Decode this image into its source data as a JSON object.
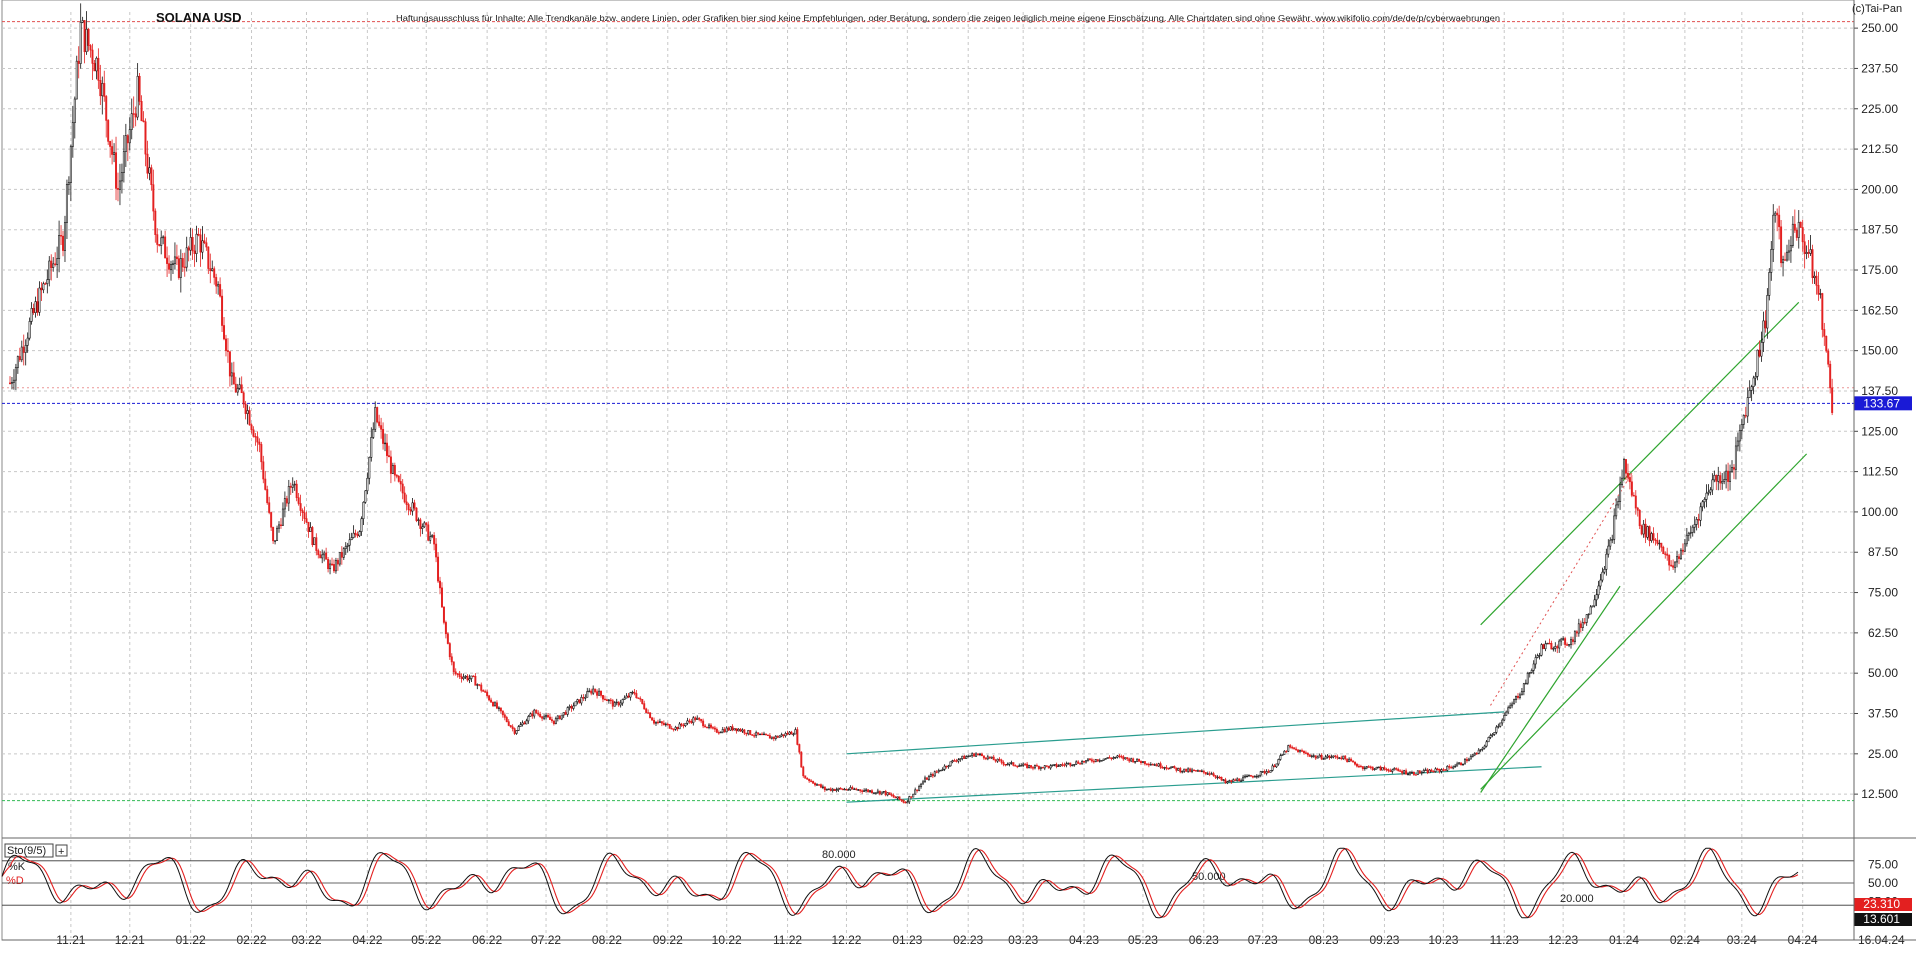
{
  "header": {
    "title": "SOLANA USD",
    "disclaimer": "Haftungsausschluss für Inhalte: Alle Trendkanäle bzw. andere Linien, oder Grafiken hier sind keine Empfehlungen, oder Beratung, sondern die zeigen lediglich meine eigene Einschätzung. Alle Chartdaten sind ohne Gewähr. www.wikifolio.com/de/de/p/cyberwaehrungen",
    "copyright": "(c)Tai-Pan"
  },
  "colors": {
    "up": "#111111",
    "down": "#e32020",
    "price_line": "#1a1ad6",
    "res_line": "#e05050",
    "sup_line": "#33bb55",
    "channel_teal": "#2a9d8f",
    "channel_green": "#2fa52f"
  },
  "chart_data": [
    {
      "type": "candlestick",
      "title": "SOLANA USD",
      "ylim": [
        2,
        255
      ],
      "y_ticks": [
        "12.500",
        "25.00",
        "37.50",
        "50.00",
        "62.50",
        "75.00",
        "87.50",
        "100.00",
        "112.50",
        "125.00",
        "137.50",
        "150.00",
        "162.50",
        "175.00",
        "187.50",
        "200.00",
        "212.50",
        "225.00",
        "237.50",
        "250.00"
      ],
      "x_ticks": [
        {
          "x": "2021-11-01",
          "label": "11.21"
        },
        {
          "x": "2021-12-01",
          "label": "12.21"
        },
        {
          "x": "2022-01-01",
          "label": "01.22"
        },
        {
          "x": "2022-02-01",
          "label": "02.22"
        },
        {
          "x": "2022-03-01",
          "label": "03.22"
        },
        {
          "x": "2022-04-01",
          "label": "04.22"
        },
        {
          "x": "2022-05-01",
          "label": "05.22"
        },
        {
          "x": "2022-06-01",
          "label": "06.22"
        },
        {
          "x": "2022-07-01",
          "label": "07.22"
        },
        {
          "x": "2022-08-01",
          "label": "08.22"
        },
        {
          "x": "2022-09-01",
          "label": "09.22"
        },
        {
          "x": "2022-10-01",
          "label": "10.22"
        },
        {
          "x": "2022-11-01",
          "label": "11.22"
        },
        {
          "x": "2022-12-01",
          "label": "12.22"
        },
        {
          "x": "2023-01-01",
          "label": "01.23"
        },
        {
          "x": "2023-02-01",
          "label": "02.23"
        },
        {
          "x": "2023-03-01",
          "label": "03.23"
        },
        {
          "x": "2023-04-01",
          "label": "04.23"
        },
        {
          "x": "2023-05-01",
          "label": "05.23"
        },
        {
          "x": "2023-06-01",
          "label": "06.23"
        },
        {
          "x": "2023-07-01",
          "label": "07.23"
        },
        {
          "x": "2023-08-01",
          "label": "08.23"
        },
        {
          "x": "2023-09-01",
          "label": "09.23"
        },
        {
          "x": "2023-10-01",
          "label": "10.23"
        },
        {
          "x": "2023-11-01",
          "label": "11.23"
        },
        {
          "x": "2023-12-01",
          "label": "12.23"
        },
        {
          "x": "2024-01-01",
          "label": "01.24"
        },
        {
          "x": "2024-02-01",
          "label": "02.24"
        },
        {
          "x": "2024-03-01",
          "label": "03.24"
        },
        {
          "x": "2024-04-01",
          "label": "04.24"
        }
      ],
      "last_date_label": "16.04.24",
      "last_price": 133.67,
      "last_price_label": "133.67",
      "levels": {
        "resistance": 252,
        "mid": 138.5,
        "support": 10.5
      },
      "price_path": [
        [
          "2021-10-01",
          140
        ],
        [
          "2021-10-15",
          165
        ],
        [
          "2021-10-28",
          185
        ],
        [
          "2021-11-06",
          250
        ],
        [
          "2021-11-15",
          238
        ],
        [
          "2021-11-25",
          200
        ],
        [
          "2021-12-05",
          230
        ],
        [
          "2021-12-15",
          185
        ],
        [
          "2021-12-25",
          175
        ],
        [
          "2022-01-05",
          185
        ],
        [
          "2022-01-15",
          170
        ],
        [
          "2022-01-22",
          140
        ],
        [
          "2022-01-28",
          135
        ],
        [
          "2022-02-05",
          120
        ],
        [
          "2022-02-12",
          90
        ],
        [
          "2022-02-22",
          110
        ],
        [
          "2022-03-05",
          90
        ],
        [
          "2022-03-14",
          82
        ],
        [
          "2022-03-28",
          95
        ],
        [
          "2022-04-05",
          130
        ],
        [
          "2022-04-15",
          110
        ],
        [
          "2022-04-25",
          100
        ],
        [
          "2022-05-05",
          90
        ],
        [
          "2022-05-10",
          65
        ],
        [
          "2022-05-15",
          50
        ],
        [
          "2022-05-25",
          48
        ],
        [
          "2022-06-05",
          40
        ],
        [
          "2022-06-15",
          32
        ],
        [
          "2022-06-25",
          38
        ],
        [
          "2022-07-05",
          35
        ],
        [
          "2022-07-15",
          40
        ],
        [
          "2022-07-25",
          45
        ],
        [
          "2022-08-05",
          40
        ],
        [
          "2022-08-15",
          44
        ],
        [
          "2022-08-25",
          35
        ],
        [
          "2022-09-05",
          33
        ],
        [
          "2022-09-15",
          36
        ],
        [
          "2022-09-25",
          32
        ],
        [
          "2022-10-05",
          33
        ],
        [
          "2022-10-15",
          31
        ],
        [
          "2022-10-25",
          30
        ],
        [
          "2022-11-05",
          32
        ],
        [
          "2022-11-09",
          18
        ],
        [
          "2022-11-20",
          14
        ],
        [
          "2022-12-05",
          14
        ],
        [
          "2022-12-20",
          13
        ],
        [
          "2022-12-31",
          10
        ],
        [
          "2023-01-10",
          17
        ],
        [
          "2023-01-25",
          23
        ],
        [
          "2023-02-05",
          25
        ],
        [
          "2023-02-20",
          22
        ],
        [
          "2023-03-05",
          21
        ],
        [
          "2023-03-15",
          21
        ],
        [
          "2023-03-25",
          22
        ],
        [
          "2023-04-05",
          23
        ],
        [
          "2023-04-18",
          24
        ],
        [
          "2023-05-05",
          22
        ],
        [
          "2023-05-20",
          20
        ],
        [
          "2023-06-05",
          19
        ],
        [
          "2023-06-12",
          16
        ],
        [
          "2023-06-25",
          18
        ],
        [
          "2023-07-05",
          20
        ],
        [
          "2023-07-14",
          27
        ],
        [
          "2023-07-28",
          24
        ],
        [
          "2023-08-10",
          24
        ],
        [
          "2023-08-20",
          21
        ],
        [
          "2023-09-05",
          20
        ],
        [
          "2023-09-15",
          19
        ],
        [
          "2023-09-30",
          20
        ],
        [
          "2023-10-10",
          22
        ],
        [
          "2023-10-20",
          26
        ],
        [
          "2023-10-30",
          35
        ],
        [
          "2023-11-10",
          45
        ],
        [
          "2023-11-20",
          58
        ],
        [
          "2023-12-05",
          60
        ],
        [
          "2023-12-15",
          70
        ],
        [
          "2023-12-25",
          90
        ],
        [
          "2024-01-01",
          115
        ],
        [
          "2024-01-10",
          95
        ],
        [
          "2024-01-20",
          90
        ],
        [
          "2024-01-25",
          82
        ],
        [
          "2024-02-05",
          95
        ],
        [
          "2024-02-15",
          110
        ],
        [
          "2024-02-25",
          112
        ],
        [
          "2024-03-02",
          130
        ],
        [
          "2024-03-08",
          145
        ],
        [
          "2024-03-13",
          160
        ],
        [
          "2024-03-18",
          195
        ],
        [
          "2024-03-22",
          175
        ],
        [
          "2024-03-28",
          190
        ],
        [
          "2024-04-04",
          180
        ],
        [
          "2024-04-10",
          165
        ],
        [
          "2024-04-16",
          133
        ]
      ],
      "trend_lines": [
        {
          "name": "teal-upper",
          "points": [
            [
              "2022-12-01",
              25
            ],
            [
              "2023-11-01",
              38
            ]
          ]
        },
        {
          "name": "teal-lower",
          "points": [
            [
              "2022-12-01",
              10
            ],
            [
              "2023-11-20",
              21
            ]
          ]
        },
        {
          "name": "green-upper",
          "points": [
            [
              "2023-10-20",
              65
            ],
            [
              "2024-03-30",
              165
            ]
          ]
        },
        {
          "name": "green-lower",
          "points": [
            [
              "2023-10-20",
              14
            ],
            [
              "2024-04-03",
              118
            ]
          ]
        },
        {
          "name": "green-steep",
          "points": [
            [
              "2023-10-20",
              13
            ],
            [
              "2023-12-30",
              77
            ]
          ]
        }
      ]
    },
    {
      "type": "line",
      "title": "Sto(9/5)",
      "ylim": [
        0,
        100
      ],
      "y_ticks": [
        "25.00",
        "50.00",
        "75.00"
      ],
      "levels": [
        {
          "value": 80,
          "label": "80.000"
        },
        {
          "value": 50,
          "label": "50.000"
        },
        {
          "value": 20,
          "label": "20.000"
        }
      ],
      "series": [
        {
          "name": "%K",
          "last_label": "13.601"
        },
        {
          "name": "%D",
          "last_label": "23.310"
        }
      ]
    }
  ]
}
